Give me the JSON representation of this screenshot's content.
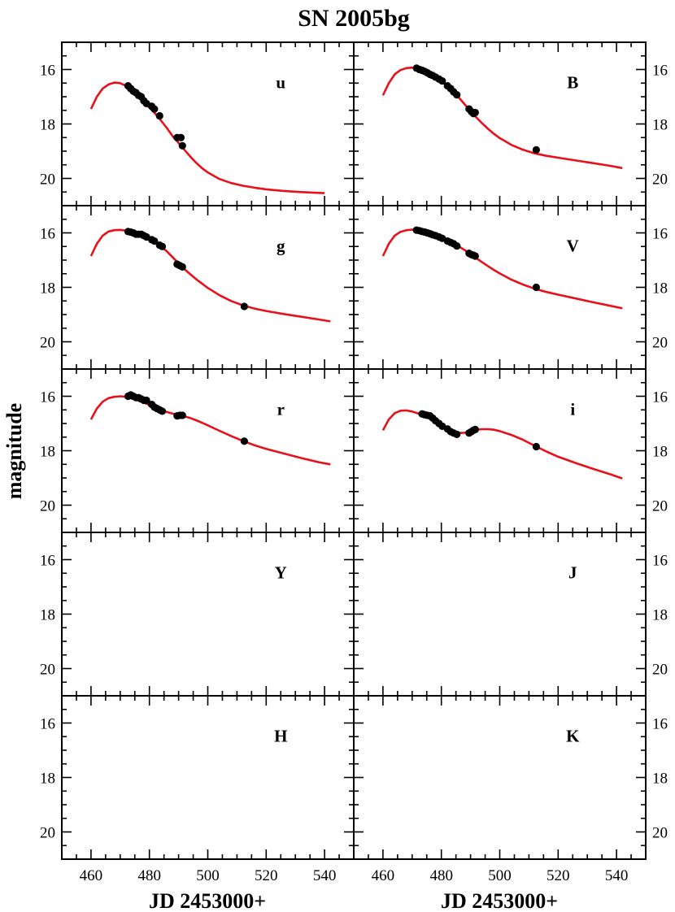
{
  "chart_data": {
    "type": "scatter",
    "title": "SN 2005bg",
    "xlabel": "JD 2453000+",
    "ylabel": "magnitude",
    "xlim": [
      450,
      550
    ],
    "ylim": [
      21,
      15
    ],
    "y_inverted": true,
    "x_ticks": [
      "460",
      "480",
      "500",
      "520",
      "540"
    ],
    "y_ticks": [
      "16",
      "18",
      "20"
    ],
    "grid": false,
    "layout": "5 rows x 2 columns, shared axes",
    "model_color": "#e8101a",
    "point_color": "#000000",
    "panels": [
      {
        "band": "u",
        "points": [
          [
            472.7,
            16.6
          ],
          [
            473.6,
            16.7
          ],
          [
            474.5,
            16.8
          ],
          [
            475.4,
            16.85
          ],
          [
            476.3,
            16.95
          ],
          [
            477.2,
            17.0
          ],
          [
            478.1,
            17.15
          ],
          [
            479.0,
            17.25
          ],
          [
            480.8,
            17.35
          ],
          [
            481.7,
            17.45
          ],
          [
            483.5,
            17.7
          ],
          [
            489.5,
            18.5
          ],
          [
            490.8,
            18.5
          ],
          [
            491.3,
            18.8
          ]
        ],
        "model": [
          [
            460,
            17.45
          ],
          [
            462,
            17.0
          ],
          [
            464,
            16.7
          ],
          [
            466,
            16.55
          ],
          [
            468,
            16.48
          ],
          [
            470,
            16.5
          ],
          [
            472,
            16.6
          ],
          [
            474,
            16.78
          ],
          [
            476,
            16.98
          ],
          [
            478,
            17.18
          ],
          [
            480,
            17.4
          ],
          [
            482,
            17.62
          ],
          [
            484,
            17.88
          ],
          [
            486,
            18.15
          ],
          [
            488,
            18.45
          ],
          [
            490,
            18.7
          ],
          [
            492,
            18.95
          ],
          [
            494,
            19.2
          ],
          [
            496,
            19.42
          ],
          [
            498,
            19.62
          ],
          [
            500,
            19.78
          ],
          [
            504,
            20.02
          ],
          [
            508,
            20.17
          ],
          [
            512,
            20.27
          ],
          [
            516,
            20.34
          ],
          [
            520,
            20.4
          ],
          [
            526,
            20.46
          ],
          [
            532,
            20.5
          ],
          [
            538,
            20.53
          ],
          [
            540,
            20.54
          ]
        ]
      },
      {
        "band": "B",
        "points": [
          [
            471.5,
            15.95
          ],
          [
            472.5,
            16.0
          ],
          [
            473.4,
            16.03
          ],
          [
            474.3,
            16.07
          ],
          [
            475.2,
            16.12
          ],
          [
            476.1,
            16.18
          ],
          [
            477.0,
            16.22
          ],
          [
            478.0,
            16.28
          ],
          [
            479.2,
            16.35
          ],
          [
            480.3,
            16.42
          ],
          [
            482.1,
            16.6
          ],
          [
            483.2,
            16.7
          ],
          [
            484.2,
            16.82
          ],
          [
            485.3,
            16.93
          ],
          [
            489.5,
            17.45
          ],
          [
            490.3,
            17.55
          ],
          [
            491.0,
            17.62
          ],
          [
            491.6,
            17.58
          ],
          [
            512.5,
            18.95
          ]
        ],
        "model": [
          [
            460,
            16.95
          ],
          [
            462,
            16.5
          ],
          [
            464,
            16.18
          ],
          [
            466,
            16.02
          ],
          [
            468,
            15.95
          ],
          [
            470,
            15.93
          ],
          [
            472,
            15.98
          ],
          [
            474,
            16.06
          ],
          [
            476,
            16.16
          ],
          [
            478,
            16.28
          ],
          [
            480,
            16.43
          ],
          [
            482,
            16.6
          ],
          [
            484,
            16.8
          ],
          [
            486,
            17.03
          ],
          [
            488,
            17.28
          ],
          [
            490,
            17.52
          ],
          [
            492,
            17.76
          ],
          [
            494,
            17.98
          ],
          [
            496,
            18.18
          ],
          [
            498,
            18.36
          ],
          [
            500,
            18.52
          ],
          [
            504,
            18.77
          ],
          [
            508,
            18.95
          ],
          [
            512,
            19.08
          ],
          [
            516,
            19.17
          ],
          [
            520,
            19.24
          ],
          [
            526,
            19.34
          ],
          [
            532,
            19.44
          ],
          [
            538,
            19.54
          ],
          [
            542,
            19.62
          ]
        ]
      },
      {
        "band": "g",
        "points": [
          [
            472.7,
            15.95
          ],
          [
            473.6,
            15.97
          ],
          [
            474.5,
            16.0
          ],
          [
            475.4,
            16.05
          ],
          [
            476.3,
            16.05
          ],
          [
            477.2,
            16.05
          ],
          [
            478.1,
            16.1
          ],
          [
            479.0,
            16.15
          ],
          [
            480.8,
            16.25
          ],
          [
            481.7,
            16.3
          ],
          [
            483.5,
            16.45
          ],
          [
            484.4,
            16.5
          ],
          [
            489.5,
            17.15
          ],
          [
            490.4,
            17.2
          ],
          [
            491.3,
            17.25
          ],
          [
            512.5,
            18.7
          ]
        ],
        "model": [
          [
            460,
            16.85
          ],
          [
            462,
            16.4
          ],
          [
            464,
            16.1
          ],
          [
            466,
            15.95
          ],
          [
            468,
            15.9
          ],
          [
            470,
            15.89
          ],
          [
            472,
            15.92
          ],
          [
            474,
            15.98
          ],
          [
            476,
            16.05
          ],
          [
            478,
            16.13
          ],
          [
            480,
            16.22
          ],
          [
            482,
            16.34
          ],
          [
            484,
            16.5
          ],
          [
            486,
            16.68
          ],
          [
            488,
            16.9
          ],
          [
            490,
            17.12
          ],
          [
            492,
            17.33
          ],
          [
            494,
            17.52
          ],
          [
            496,
            17.7
          ],
          [
            498,
            17.86
          ],
          [
            500,
            18.02
          ],
          [
            504,
            18.29
          ],
          [
            508,
            18.5
          ],
          [
            512,
            18.66
          ],
          [
            516,
            18.78
          ],
          [
            520,
            18.87
          ],
          [
            526,
            18.98
          ],
          [
            532,
            19.08
          ],
          [
            538,
            19.18
          ],
          [
            542,
            19.25
          ]
        ]
      },
      {
        "band": "V",
        "points": [
          [
            471.5,
            15.9
          ],
          [
            472.5,
            15.92
          ],
          [
            473.4,
            15.95
          ],
          [
            474.3,
            15.97
          ],
          [
            475.2,
            16.0
          ],
          [
            476.1,
            16.03
          ],
          [
            477.0,
            16.07
          ],
          [
            478.0,
            16.1
          ],
          [
            479.2,
            16.15
          ],
          [
            480.3,
            16.2
          ],
          [
            482.1,
            16.3
          ],
          [
            483.2,
            16.35
          ],
          [
            484.2,
            16.4
          ],
          [
            485.3,
            16.48
          ],
          [
            489.5,
            16.75
          ],
          [
            490.3,
            16.8
          ],
          [
            491.0,
            16.82
          ],
          [
            491.6,
            16.85
          ],
          [
            512.5,
            18.0
          ]
        ],
        "model": [
          [
            460,
            16.85
          ],
          [
            462,
            16.4
          ],
          [
            464,
            16.1
          ],
          [
            466,
            15.96
          ],
          [
            468,
            15.9
          ],
          [
            470,
            15.88
          ],
          [
            472,
            15.9
          ],
          [
            474,
            15.95
          ],
          [
            476,
            16.02
          ],
          [
            478,
            16.1
          ],
          [
            480,
            16.18
          ],
          [
            482,
            16.28
          ],
          [
            484,
            16.38
          ],
          [
            486,
            16.5
          ],
          [
            488,
            16.63
          ],
          [
            490,
            16.78
          ],
          [
            492,
            16.93
          ],
          [
            494,
            17.08
          ],
          [
            496,
            17.22
          ],
          [
            498,
            17.36
          ],
          [
            500,
            17.49
          ],
          [
            504,
            17.72
          ],
          [
            508,
            17.9
          ],
          [
            512,
            18.05
          ],
          [
            516,
            18.17
          ],
          [
            520,
            18.27
          ],
          [
            526,
            18.41
          ],
          [
            532,
            18.55
          ],
          [
            538,
            18.68
          ],
          [
            542,
            18.77
          ]
        ]
      },
      {
        "band": "r",
        "points": [
          [
            472.7,
            16.0
          ],
          [
            473.6,
            15.95
          ],
          [
            474.5,
            16.0
          ],
          [
            475.4,
            16.05
          ],
          [
            476.3,
            16.05
          ],
          [
            477.2,
            16.1
          ],
          [
            478.1,
            16.15
          ],
          [
            479.0,
            16.15
          ],
          [
            480.8,
            16.3
          ],
          [
            481.7,
            16.4
          ],
          [
            482.6,
            16.45
          ],
          [
            483.5,
            16.5
          ],
          [
            484.4,
            16.55
          ],
          [
            489.5,
            16.72
          ],
          [
            490.4,
            16.7
          ],
          [
            491.3,
            16.7
          ],
          [
            512.5,
            17.65
          ]
        ],
        "model": [
          [
            460,
            16.85
          ],
          [
            462,
            16.45
          ],
          [
            464,
            16.2
          ],
          [
            466,
            16.07
          ],
          [
            468,
            16.02
          ],
          [
            470,
            16.0
          ],
          [
            472,
            16.02
          ],
          [
            474,
            16.08
          ],
          [
            476,
            16.15
          ],
          [
            478,
            16.23
          ],
          [
            480,
            16.32
          ],
          [
            482,
            16.41
          ],
          [
            484,
            16.5
          ],
          [
            486,
            16.58
          ],
          [
            488,
            16.64
          ],
          [
            490,
            16.69
          ],
          [
            492,
            16.74
          ],
          [
            494,
            16.8
          ],
          [
            496,
            16.88
          ],
          [
            498,
            16.97
          ],
          [
            500,
            17.07
          ],
          [
            504,
            17.27
          ],
          [
            508,
            17.46
          ],
          [
            512,
            17.64
          ],
          [
            516,
            17.8
          ],
          [
            520,
            17.93
          ],
          [
            526,
            18.1
          ],
          [
            532,
            18.27
          ],
          [
            538,
            18.42
          ],
          [
            542,
            18.5
          ]
        ]
      },
      {
        "band": "i",
        "points": [
          [
            473.4,
            16.65
          ],
          [
            474.3,
            16.68
          ],
          [
            475.2,
            16.7
          ],
          [
            476.1,
            16.72
          ],
          [
            477.0,
            16.8
          ],
          [
            478.0,
            16.9
          ],
          [
            479.2,
            17.0
          ],
          [
            480.3,
            17.1
          ],
          [
            482.1,
            17.2
          ],
          [
            483.2,
            17.3
          ],
          [
            484.2,
            17.35
          ],
          [
            485.3,
            17.4
          ],
          [
            489.5,
            17.35
          ],
          [
            490.3,
            17.3
          ],
          [
            491.0,
            17.25
          ],
          [
            491.6,
            17.22
          ],
          [
            512.5,
            17.85
          ]
        ],
        "model": [
          [
            460,
            17.25
          ],
          [
            462,
            16.85
          ],
          [
            464,
            16.62
          ],
          [
            466,
            16.53
          ],
          [
            468,
            16.52
          ],
          [
            470,
            16.56
          ],
          [
            472,
            16.63
          ],
          [
            474,
            16.72
          ],
          [
            476,
            16.82
          ],
          [
            478,
            16.93
          ],
          [
            480,
            17.05
          ],
          [
            482,
            17.18
          ],
          [
            484,
            17.29
          ],
          [
            486,
            17.35
          ],
          [
            488,
            17.34
          ],
          [
            490,
            17.28
          ],
          [
            492,
            17.23
          ],
          [
            494,
            17.21
          ],
          [
            496,
            17.21
          ],
          [
            498,
            17.23
          ],
          [
            500,
            17.28
          ],
          [
            504,
            17.42
          ],
          [
            508,
            17.6
          ],
          [
            512,
            17.82
          ],
          [
            516,
            18.03
          ],
          [
            520,
            18.22
          ],
          [
            526,
            18.45
          ],
          [
            532,
            18.67
          ],
          [
            538,
            18.87
          ],
          [
            542,
            19.02
          ]
        ]
      },
      {
        "band": "Y",
        "points": [],
        "model": []
      },
      {
        "band": "J",
        "points": [],
        "model": []
      },
      {
        "band": "H",
        "points": [],
        "model": []
      },
      {
        "band": "K",
        "points": [],
        "model": []
      }
    ]
  }
}
